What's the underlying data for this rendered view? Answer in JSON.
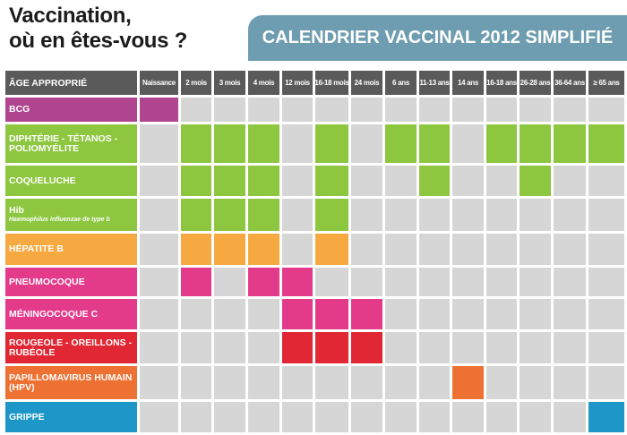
{
  "title": {
    "line1": "Vaccination,",
    "line2": "où en êtes-vous ?"
  },
  "banner": "CALENDRIER VACCINAL 2012 SIMPLIFIÉ",
  "header_label": "ÂGE APPROPRIÉ",
  "columns": [
    "Naissance",
    "2 mois",
    "3 mois",
    "4 mois",
    "12 mois",
    "16-18 mois",
    "24 mois",
    "6 ans",
    "11-13 ans",
    "14 ans",
    "16-18 ans",
    "26-28 ans",
    "36-64 ans",
    "≥ 65 ans"
  ],
  "colors": {
    "empty": "#d6d6d6",
    "header": "#5a5a5a",
    "banner": "#6e9cb0"
  },
  "vaccines": [
    {
      "label": "BCG",
      "sub": "",
      "color": "#b0448f",
      "cols": [
        0
      ]
    },
    {
      "label": "DIPHTÉRIE - TÉTANOS - POLIOMYÉLITE",
      "sub": "",
      "color": "#8dc63f",
      "cols": [
        1,
        2,
        3,
        5,
        7,
        8,
        10,
        11,
        12,
        13
      ]
    },
    {
      "label": "COQUELUCHE",
      "sub": "",
      "color": "#8dc63f",
      "cols": [
        1,
        2,
        3,
        5,
        8,
        11
      ]
    },
    {
      "label": "Hib",
      "sub": "Haemophilus influenzae de type b",
      "color": "#8dc63f",
      "cols": [
        1,
        2,
        3,
        5
      ]
    },
    {
      "label": "HÉPATITE B",
      "sub": "",
      "color": "#f7a941",
      "cols": [
        1,
        2,
        3,
        5
      ]
    },
    {
      "label": "PNEUMOCOQUE",
      "sub": "",
      "color": "#e33a8a",
      "cols": [
        1,
        3,
        4
      ]
    },
    {
      "label": "MÉNINGOCOQUE C",
      "sub": "",
      "color": "#e33a8a",
      "cols": [
        4,
        5,
        6
      ]
    },
    {
      "label": "ROUGEOLE - OREILLONS - RUBÉOLE",
      "sub": "",
      "color": "#e02733",
      "cols": [
        4,
        5,
        6
      ]
    },
    {
      "label": "PAPILLOMAVIRUS HUMAIN (HPV)",
      "sub": "",
      "color": "#ee7134",
      "cols": [
        9
      ]
    },
    {
      "label": "GRIPPE",
      "sub": "",
      "color": "#1c97c8",
      "cols": [
        13
      ]
    }
  ]
}
